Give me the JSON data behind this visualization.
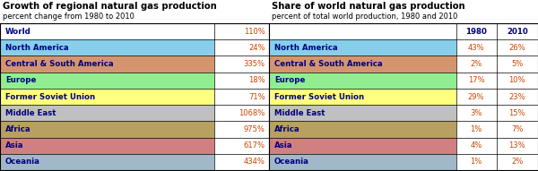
{
  "title1": "Growth of regional natural gas production",
  "subtitle1": "percent change from 1980 to 2010",
  "title2": "Share of world natural gas production",
  "subtitle2": "percent of total world production, 1980 and 2010",
  "regions": [
    "World",
    "North America",
    "Central & South America",
    "Europe",
    "Former Soviet Union",
    "Middle East",
    "Africa",
    "Asia",
    "Oceania"
  ],
  "growth_values": [
    "110%",
    "24%",
    "335%",
    "18%",
    "71%",
    "1068%",
    "975%",
    "617%",
    "434%"
  ],
  "share_1980": [
    "1980",
    "43%",
    "2%",
    "17%",
    "29%",
    "3%",
    "1%",
    "4%",
    "1%"
  ],
  "share_2010": [
    "2010",
    "26%",
    "5%",
    "10%",
    "23%",
    "15%",
    "7%",
    "13%",
    "2%"
  ],
  "row_colors": [
    "#ffffff",
    "#87ceeb",
    "#d4956e",
    "#90ee90",
    "#ffff80",
    "#c0c0c0",
    "#b8a060",
    "#d08080",
    "#a0b8c8"
  ],
  "border_color": "#000000",
  "text_color_label": "#000080",
  "text_color_value": "#cc4400",
  "text_color_header": "#000080"
}
